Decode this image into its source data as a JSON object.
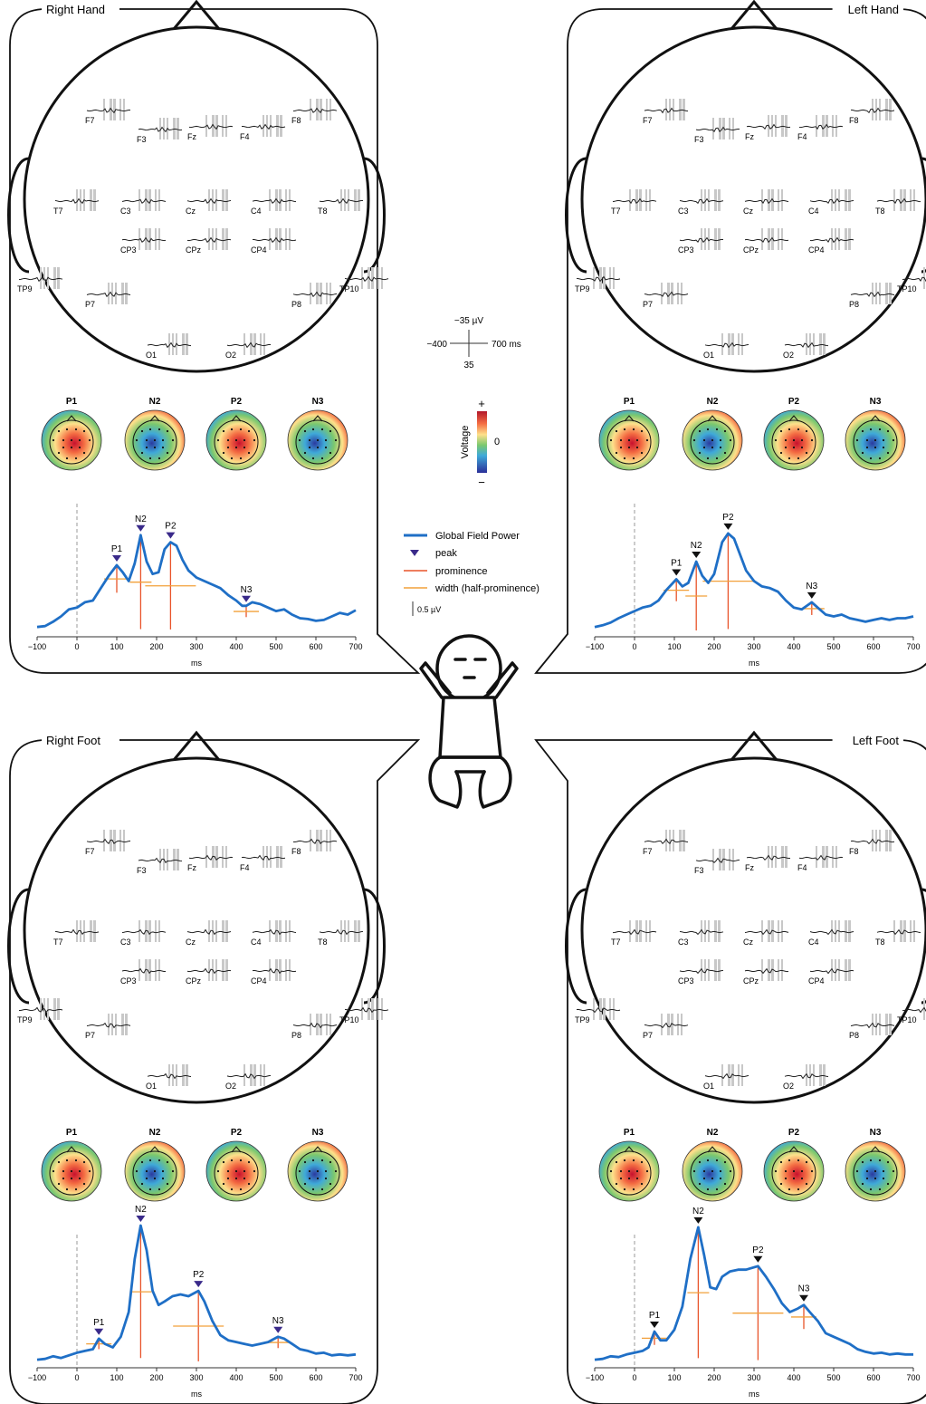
{
  "panels": [
    {
      "title": "Right Hand",
      "side": "left",
      "peaks": [
        {
          "label": "P1",
          "ms": 100,
          "v": 3.9
        },
        {
          "label": "N2",
          "ms": 160,
          "v": 5.6
        },
        {
          "label": "P2",
          "ms": 235,
          "v": 5.2
        },
        {
          "label": "N3",
          "ms": 425,
          "v": 1.6
        }
      ],
      "gfp": [
        [
          -100,
          0.4
        ],
        [
          -80,
          0.45
        ],
        [
          -60,
          0.7
        ],
        [
          -40,
          1.0
        ],
        [
          -20,
          1.4
        ],
        [
          0,
          1.5
        ],
        [
          20,
          1.8
        ],
        [
          40,
          1.9
        ],
        [
          60,
          2.6
        ],
        [
          80,
          3.3
        ],
        [
          100,
          3.9
        ],
        [
          115,
          3.5
        ],
        [
          130,
          3.0
        ],
        [
          145,
          4.0
        ],
        [
          160,
          5.6
        ],
        [
          175,
          4.1
        ],
        [
          190,
          3.4
        ],
        [
          205,
          3.5
        ],
        [
          220,
          4.8
        ],
        [
          235,
          5.2
        ],
        [
          250,
          5.0
        ],
        [
          265,
          4.2
        ],
        [
          280,
          3.6
        ],
        [
          300,
          3.2
        ],
        [
          320,
          3.0
        ],
        [
          340,
          2.8
        ],
        [
          360,
          2.6
        ],
        [
          380,
          2.2
        ],
        [
          400,
          1.9
        ],
        [
          415,
          1.6
        ],
        [
          425,
          1.6
        ],
        [
          440,
          1.8
        ],
        [
          460,
          1.7
        ],
        [
          480,
          1.5
        ],
        [
          500,
          1.3
        ],
        [
          520,
          1.4
        ],
        [
          540,
          1.1
        ],
        [
          560,
          0.9
        ],
        [
          580,
          0.85
        ],
        [
          600,
          0.75
        ],
        [
          620,
          0.8
        ],
        [
          640,
          1.0
        ],
        [
          660,
          1.2
        ],
        [
          680,
          1.1
        ],
        [
          700,
          1.35
        ]
      ]
    },
    {
      "title": "Left Hand",
      "side": "right",
      "peaks": [
        {
          "label": "P1",
          "ms": 105,
          "v": 3.1
        },
        {
          "label": "N2",
          "ms": 155,
          "v": 4.1
        },
        {
          "label": "P2",
          "ms": 235,
          "v": 5.7
        },
        {
          "label": "N3",
          "ms": 445,
          "v": 1.8
        }
      ],
      "gfp": [
        [
          -100,
          0.4
        ],
        [
          -80,
          0.5
        ],
        [
          -60,
          0.65
        ],
        [
          -40,
          0.9
        ],
        [
          -20,
          1.1
        ],
        [
          0,
          1.3
        ],
        [
          20,
          1.5
        ],
        [
          40,
          1.6
        ],
        [
          60,
          1.9
        ],
        [
          80,
          2.5
        ],
        [
          105,
          3.1
        ],
        [
          120,
          2.7
        ],
        [
          135,
          2.9
        ],
        [
          155,
          4.1
        ],
        [
          170,
          3.3
        ],
        [
          185,
          2.9
        ],
        [
          200,
          3.4
        ],
        [
          220,
          5.2
        ],
        [
          235,
          5.7
        ],
        [
          250,
          5.4
        ],
        [
          265,
          4.5
        ],
        [
          280,
          3.6
        ],
        [
          300,
          3.0
        ],
        [
          320,
          2.7
        ],
        [
          340,
          2.6
        ],
        [
          360,
          2.4
        ],
        [
          380,
          1.9
        ],
        [
          400,
          1.5
        ],
        [
          420,
          1.4
        ],
        [
          445,
          1.8
        ],
        [
          460,
          1.5
        ],
        [
          480,
          1.1
        ],
        [
          500,
          1.0
        ],
        [
          520,
          1.1
        ],
        [
          540,
          0.9
        ],
        [
          560,
          0.8
        ],
        [
          580,
          0.7
        ],
        [
          600,
          0.8
        ],
        [
          620,
          0.9
        ],
        [
          640,
          0.8
        ],
        [
          660,
          0.9
        ],
        [
          680,
          0.9
        ],
        [
          700,
          1.0
        ]
      ]
    },
    {
      "title": "Right Foot",
      "side": "left",
      "peaks": [
        {
          "label": "P1",
          "ms": 55,
          "v": 1.5
        },
        {
          "label": "N2",
          "ms": 160,
          "v": 7.9
        },
        {
          "label": "P2",
          "ms": 305,
          "v": 4.2
        },
        {
          "label": "N3",
          "ms": 505,
          "v": 1.6
        }
      ],
      "gfp": [
        [
          -100,
          0.3
        ],
        [
          -80,
          0.35
        ],
        [
          -60,
          0.5
        ],
        [
          -40,
          0.4
        ],
        [
          -20,
          0.55
        ],
        [
          0,
          0.7
        ],
        [
          20,
          0.8
        ],
        [
          40,
          0.9
        ],
        [
          55,
          1.5
        ],
        [
          70,
          1.2
        ],
        [
          90,
          1.0
        ],
        [
          110,
          1.6
        ],
        [
          130,
          3.0
        ],
        [
          145,
          6.0
        ],
        [
          160,
          7.9
        ],
        [
          175,
          6.5
        ],
        [
          190,
          4.2
        ],
        [
          205,
          3.4
        ],
        [
          220,
          3.6
        ],
        [
          240,
          3.9
        ],
        [
          260,
          4.0
        ],
        [
          280,
          3.9
        ],
        [
          305,
          4.2
        ],
        [
          320,
          3.6
        ],
        [
          340,
          2.5
        ],
        [
          360,
          1.7
        ],
        [
          380,
          1.4
        ],
        [
          400,
          1.3
        ],
        [
          420,
          1.2
        ],
        [
          440,
          1.1
        ],
        [
          460,
          1.2
        ],
        [
          480,
          1.3
        ],
        [
          505,
          1.6
        ],
        [
          520,
          1.5
        ],
        [
          540,
          1.2
        ],
        [
          560,
          0.9
        ],
        [
          580,
          0.8
        ],
        [
          600,
          0.65
        ],
        [
          620,
          0.7
        ],
        [
          640,
          0.55
        ],
        [
          660,
          0.6
        ],
        [
          680,
          0.55
        ],
        [
          700,
          0.6
        ]
      ]
    },
    {
      "title": "Left Foot",
      "side": "right",
      "peaks": [
        {
          "label": "P1",
          "ms": 50,
          "v": 1.9
        },
        {
          "label": "N2",
          "ms": 160,
          "v": 7.8
        },
        {
          "label": "P2",
          "ms": 310,
          "v": 5.6
        },
        {
          "label": "N3",
          "ms": 425,
          "v": 3.4
        }
      ],
      "gfp": [
        [
          -100,
          0.3
        ],
        [
          -80,
          0.35
        ],
        [
          -60,
          0.5
        ],
        [
          -40,
          0.45
        ],
        [
          -20,
          0.6
        ],
        [
          0,
          0.7
        ],
        [
          20,
          0.8
        ],
        [
          35,
          1.0
        ],
        [
          50,
          1.9
        ],
        [
          65,
          1.4
        ],
        [
          80,
          1.4
        ],
        [
          100,
          2.0
        ],
        [
          120,
          3.3
        ],
        [
          140,
          6.0
        ],
        [
          160,
          7.8
        ],
        [
          175,
          6.2
        ],
        [
          190,
          4.4
        ],
        [
          205,
          4.3
        ],
        [
          220,
          5.0
        ],
        [
          240,
          5.3
        ],
        [
          260,
          5.4
        ],
        [
          280,
          5.4
        ],
        [
          310,
          5.6
        ],
        [
          330,
          5.0
        ],
        [
          350,
          4.3
        ],
        [
          370,
          3.5
        ],
        [
          390,
          3.0
        ],
        [
          410,
          3.2
        ],
        [
          425,
          3.4
        ],
        [
          440,
          3.0
        ],
        [
          460,
          2.5
        ],
        [
          480,
          1.8
        ],
        [
          500,
          1.6
        ],
        [
          520,
          1.4
        ],
        [
          540,
          1.2
        ],
        [
          560,
          0.9
        ],
        [
          580,
          0.75
        ],
        [
          600,
          0.65
        ],
        [
          620,
          0.7
        ],
        [
          640,
          0.6
        ],
        [
          660,
          0.65
        ],
        [
          680,
          0.6
        ],
        [
          700,
          0.6
        ]
      ]
    }
  ],
  "electrodes": [
    "F7",
    "F3",
    "Fz",
    "F4",
    "F8",
    "T7",
    "C3",
    "Cz",
    "C4",
    "T8",
    "CP3",
    "CPz",
    "CP4",
    "TP9",
    "TP10",
    "P7",
    "P8",
    "O1",
    "O2"
  ],
  "topo_labels": [
    "P1",
    "N2",
    "P2",
    "N3"
  ],
  "axis": {
    "xlabel": "ms",
    "ticks": [
      "−100",
      "0",
      "100",
      "200",
      "300",
      "400",
      "500",
      "600",
      "700"
    ]
  },
  "scale": {
    "top": "−35 µV",
    "left": "−400",
    "right": "700 ms",
    "bottom": "35"
  },
  "colorbar": {
    "label": "Voltage",
    "plus": "+",
    "zero": "0",
    "minus": "−"
  },
  "legend": {
    "gfp": "Global Field Power",
    "peak": "peak",
    "prominence": "prominence",
    "width": "width (half-prominence)",
    "scalebar": "0.5 µV"
  },
  "colors": {
    "gfp": "#1f6fc6",
    "peak": "#3a2a8a",
    "prominence": "#e8542a",
    "width": "#f2a03a",
    "grey": "#c8c8c8"
  }
}
